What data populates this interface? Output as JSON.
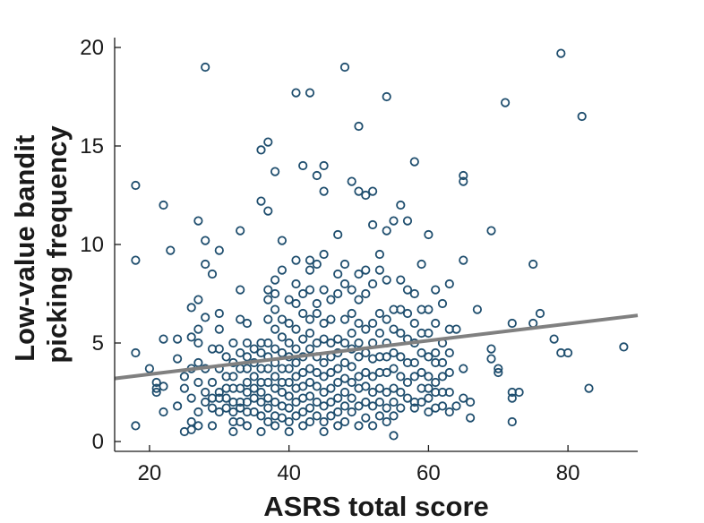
{
  "chart_data": {
    "type": "scatter",
    "xlabel": "ASRS total score",
    "ylabel_lines": [
      "Low-value bandit",
      "picking frequency"
    ],
    "xlim": [
      15,
      90
    ],
    "ylim": [
      -0.5,
      20.5
    ],
    "xticks": [
      20,
      40,
      60,
      80
    ],
    "yticks": [
      0,
      5,
      10,
      15,
      20
    ],
    "grid": false,
    "legend": "none",
    "colors": {
      "marker": "#1f4e6e",
      "fit_line": "#808080"
    },
    "fit_line": {
      "x": [
        15,
        90
      ],
      "y": [
        3.2,
        6.4
      ]
    },
    "points": [
      [
        18,
        13.0
      ],
      [
        18,
        9.2
      ],
      [
        18,
        4.5
      ],
      [
        18,
        0.8
      ],
      [
        20,
        3.7
      ],
      [
        21,
        3.0
      ],
      [
        21,
        2.7
      ],
      [
        21,
        2.5
      ],
      [
        22,
        12.0
      ],
      [
        22,
        5.2
      ],
      [
        22,
        2.8
      ],
      [
        22,
        1.5
      ],
      [
        23,
        9.7
      ],
      [
        24,
        5.2
      ],
      [
        24,
        4.2
      ],
      [
        24,
        1.8
      ],
      [
        25,
        3.3
      ],
      [
        25,
        2.7
      ],
      [
        25,
        0.5
      ],
      [
        26,
        6.8
      ],
      [
        26,
        5.3
      ],
      [
        26,
        3.7
      ],
      [
        26,
        2.2
      ],
      [
        26,
        1.0
      ],
      [
        26,
        0.6
      ],
      [
        27,
        11.2
      ],
      [
        27,
        7.2
      ],
      [
        27,
        5.7
      ],
      [
        27,
        5.0
      ],
      [
        27,
        4.0
      ],
      [
        27,
        3.0
      ],
      [
        27,
        1.5
      ],
      [
        27,
        0.8
      ],
      [
        28,
        19.0
      ],
      [
        28,
        10.2
      ],
      [
        28,
        9.0
      ],
      [
        28,
        6.3
      ],
      [
        28,
        3.7
      ],
      [
        28,
        2.5
      ],
      [
        28,
        2.0
      ],
      [
        29,
        8.5
      ],
      [
        29,
        4.7
      ],
      [
        29,
        3.0
      ],
      [
        29,
        2.2
      ],
      [
        29,
        1.7
      ],
      [
        29,
        0.8
      ],
      [
        30,
        9.7
      ],
      [
        30,
        6.5
      ],
      [
        30,
        5.7
      ],
      [
        30,
        4.7
      ],
      [
        30,
        3.7
      ],
      [
        30,
        2.5
      ],
      [
        30,
        2.2
      ],
      [
        30,
        1.5
      ],
      [
        31,
        4.3
      ],
      [
        31,
        3.3
      ],
      [
        31,
        2.7
      ],
      [
        31,
        2.2
      ],
      [
        31,
        1.7
      ],
      [
        32,
        5.0
      ],
      [
        32,
        4.0
      ],
      [
        32,
        3.3
      ],
      [
        32,
        2.7
      ],
      [
        32,
        2.0
      ],
      [
        32,
        1.5
      ],
      [
        32,
        1.0
      ],
      [
        32,
        0.5
      ],
      [
        33,
        10.7
      ],
      [
        33,
        7.7
      ],
      [
        33,
        6.2
      ],
      [
        33,
        4.5
      ],
      [
        33,
        3.7
      ],
      [
        33,
        2.7
      ],
      [
        33,
        2.0
      ],
      [
        33,
        1.7
      ],
      [
        33,
        1.0
      ],
      [
        34,
        6.0
      ],
      [
        34,
        5.0
      ],
      [
        34,
        4.3
      ],
      [
        34,
        3.7
      ],
      [
        34,
        3.0
      ],
      [
        34,
        2.5
      ],
      [
        34,
        2.0
      ],
      [
        34,
        1.5
      ],
      [
        34,
        0.8
      ],
      [
        35,
        4.7
      ],
      [
        35,
        4.0
      ],
      [
        35,
        3.3
      ],
      [
        35,
        2.7
      ],
      [
        35,
        2.2
      ],
      [
        35,
        1.5
      ],
      [
        36,
        14.8
      ],
      [
        36,
        12.2
      ],
      [
        36,
        5.0
      ],
      [
        36,
        4.5
      ],
      [
        36,
        3.7
      ],
      [
        36,
        3.0
      ],
      [
        36,
        2.5
      ],
      [
        36,
        2.0
      ],
      [
        36,
        1.3
      ],
      [
        36,
        0.5
      ],
      [
        37,
        15.2
      ],
      [
        37,
        11.7
      ],
      [
        37,
        7.7
      ],
      [
        37,
        7.2
      ],
      [
        37,
        6.2
      ],
      [
        37,
        5.0
      ],
      [
        37,
        4.3
      ],
      [
        37,
        3.7
      ],
      [
        37,
        3.0
      ],
      [
        37,
        2.2
      ],
      [
        37,
        1.7
      ],
      [
        37,
        1.0
      ],
      [
        38,
        13.7
      ],
      [
        38,
        8.2
      ],
      [
        38,
        7.5
      ],
      [
        38,
        6.7
      ],
      [
        38,
        5.7
      ],
      [
        38,
        4.7
      ],
      [
        38,
        4.0
      ],
      [
        38,
        3.3
      ],
      [
        38,
        2.7
      ],
      [
        38,
        2.0
      ],
      [
        38,
        1.3
      ],
      [
        38,
        0.8
      ],
      [
        39,
        10.2
      ],
      [
        39,
        8.7
      ],
      [
        39,
        6.2
      ],
      [
        39,
        5.3
      ],
      [
        39,
        4.5
      ],
      [
        39,
        3.7
      ],
      [
        39,
        3.0
      ],
      [
        39,
        2.5
      ],
      [
        39,
        1.8
      ],
      [
        39,
        1.2
      ],
      [
        40,
        7.2
      ],
      [
        40,
        6.0
      ],
      [
        40,
        5.0
      ],
      [
        40,
        4.3
      ],
      [
        40,
        3.7
      ],
      [
        40,
        3.0
      ],
      [
        40,
        2.3
      ],
      [
        40,
        1.7
      ],
      [
        40,
        1.0
      ],
      [
        40,
        0.5
      ],
      [
        41,
        17.7
      ],
      [
        41,
        9.2
      ],
      [
        41,
        8.0
      ],
      [
        41,
        7.0
      ],
      [
        41,
        5.7
      ],
      [
        41,
        4.7
      ],
      [
        41,
        4.0
      ],
      [
        41,
        3.3
      ],
      [
        41,
        2.7
      ],
      [
        41,
        2.0
      ],
      [
        41,
        1.3
      ],
      [
        42,
        14.0
      ],
      [
        42,
        7.5
      ],
      [
        42,
        6.5
      ],
      [
        42,
        5.2
      ],
      [
        42,
        4.3
      ],
      [
        42,
        3.5
      ],
      [
        42,
        2.8
      ],
      [
        42,
        2.2
      ],
      [
        42,
        1.5
      ],
      [
        42,
        0.8
      ],
      [
        43,
        17.7
      ],
      [
        43,
        9.2
      ],
      [
        43,
        8.7
      ],
      [
        43,
        7.7
      ],
      [
        43,
        6.2
      ],
      [
        43,
        5.5
      ],
      [
        43,
        4.7
      ],
      [
        43,
        3.7
      ],
      [
        43,
        3.0
      ],
      [
        43,
        2.3
      ],
      [
        43,
        1.7
      ],
      [
        43,
        1.0
      ],
      [
        44,
        13.5
      ],
      [
        44,
        9.0
      ],
      [
        44,
        7.0
      ],
      [
        44,
        6.5
      ],
      [
        44,
        5.0
      ],
      [
        44,
        4.3
      ],
      [
        44,
        3.5
      ],
      [
        44,
        2.8
      ],
      [
        44,
        2.0
      ],
      [
        44,
        1.3
      ],
      [
        45,
        14.0
      ],
      [
        45,
        12.7
      ],
      [
        45,
        9.5
      ],
      [
        45,
        7.7
      ],
      [
        45,
        6.0
      ],
      [
        45,
        5.2
      ],
      [
        45,
        4.0
      ],
      [
        45,
        3.3
      ],
      [
        45,
        2.5
      ],
      [
        45,
        1.8
      ],
      [
        45,
        1.0
      ],
      [
        45,
        0.5
      ],
      [
        46,
        7.2
      ],
      [
        46,
        6.2
      ],
      [
        46,
        5.0
      ],
      [
        46,
        4.3
      ],
      [
        46,
        3.5
      ],
      [
        46,
        2.7
      ],
      [
        46,
        2.0
      ],
      [
        46,
        1.3
      ],
      [
        47,
        10.5
      ],
      [
        47,
        8.5
      ],
      [
        47,
        7.5
      ],
      [
        47,
        5.2
      ],
      [
        47,
        4.5
      ],
      [
        47,
        3.7
      ],
      [
        47,
        3.0
      ],
      [
        47,
        2.2
      ],
      [
        47,
        1.5
      ],
      [
        47,
        0.8
      ],
      [
        48,
        19.0
      ],
      [
        48,
        9.0
      ],
      [
        48,
        8.0
      ],
      [
        48,
        6.2
      ],
      [
        48,
        5.0
      ],
      [
        48,
        4.0
      ],
      [
        48,
        3.2
      ],
      [
        48,
        2.5
      ],
      [
        48,
        1.8
      ],
      [
        48,
        1.0
      ],
      [
        49,
        13.2
      ],
      [
        49,
        7.7
      ],
      [
        49,
        6.5
      ],
      [
        49,
        5.5
      ],
      [
        49,
        4.7
      ],
      [
        49,
        3.8
      ],
      [
        49,
        3.0
      ],
      [
        49,
        2.2
      ],
      [
        49,
        1.5
      ],
      [
        50,
        16.0
      ],
      [
        50,
        12.7
      ],
      [
        50,
        8.5
      ],
      [
        50,
        7.2
      ],
      [
        50,
        6.0
      ],
      [
        50,
        5.0
      ],
      [
        50,
        4.3
      ],
      [
        50,
        3.3
      ],
      [
        50,
        2.7
      ],
      [
        50,
        1.8
      ],
      [
        50,
        0.8
      ],
      [
        51,
        12.5
      ],
      [
        51,
        8.7
      ],
      [
        51,
        7.5
      ],
      [
        51,
        5.7
      ],
      [
        51,
        4.5
      ],
      [
        51,
        3.5
      ],
      [
        51,
        2.8
      ],
      [
        51,
        2.0
      ],
      [
        51,
        1.2
      ],
      [
        52,
        12.7
      ],
      [
        52,
        11.0
      ],
      [
        52,
        8.0
      ],
      [
        52,
        6.0
      ],
      [
        52,
        5.0
      ],
      [
        52,
        4.2
      ],
      [
        52,
        3.3
      ],
      [
        52,
        2.5
      ],
      [
        52,
        1.8
      ],
      [
        52,
        0.8
      ],
      [
        53,
        9.5
      ],
      [
        53,
        8.7
      ],
      [
        53,
        6.5
      ],
      [
        53,
        5.5
      ],
      [
        53,
        4.3
      ],
      [
        53,
        3.5
      ],
      [
        53,
        2.7
      ],
      [
        53,
        2.0
      ],
      [
        53,
        1.3
      ],
      [
        54,
        17.5
      ],
      [
        54,
        10.7
      ],
      [
        54,
        8.2
      ],
      [
        54,
        6.2
      ],
      [
        54,
        5.0
      ],
      [
        54,
        4.3
      ],
      [
        54,
        3.5
      ],
      [
        54,
        2.5
      ],
      [
        54,
        1.7
      ],
      [
        54,
        1.0
      ],
      [
        55,
        11.2
      ],
      [
        55,
        6.7
      ],
      [
        55,
        5.7
      ],
      [
        55,
        4.5
      ],
      [
        55,
        3.7
      ],
      [
        55,
        2.7
      ],
      [
        55,
        2.0
      ],
      [
        55,
        1.3
      ],
      [
        55,
        0.3
      ],
      [
        56,
        12.0
      ],
      [
        56,
        8.2
      ],
      [
        56,
        6.7
      ],
      [
        56,
        5.5
      ],
      [
        56,
        4.3
      ],
      [
        56,
        3.3
      ],
      [
        56,
        2.5
      ],
      [
        56,
        1.7
      ],
      [
        57,
        11.2
      ],
      [
        57,
        7.7
      ],
      [
        57,
        6.5
      ],
      [
        57,
        5.2
      ],
      [
        57,
        4.0
      ],
      [
        57,
        3.0
      ],
      [
        57,
        2.2
      ],
      [
        58,
        14.2
      ],
      [
        58,
        7.5
      ],
      [
        58,
        6.0
      ],
      [
        58,
        5.0
      ],
      [
        58,
        4.0
      ],
      [
        58,
        3.3
      ],
      [
        58,
        2.0
      ],
      [
        58,
        1.7
      ],
      [
        59,
        9.0
      ],
      [
        59,
        6.7
      ],
      [
        59,
        5.5
      ],
      [
        59,
        4.5
      ],
      [
        59,
        3.5
      ],
      [
        59,
        2.7
      ],
      [
        59,
        2.0
      ],
      [
        60,
        10.5
      ],
      [
        60,
        6.7
      ],
      [
        60,
        5.5
      ],
      [
        60,
        4.3
      ],
      [
        60,
        3.3
      ],
      [
        60,
        2.7
      ],
      [
        60,
        2.2
      ],
      [
        60,
        1.5
      ],
      [
        61,
        7.7
      ],
      [
        61,
        6.0
      ],
      [
        61,
        4.5
      ],
      [
        61,
        4.0
      ],
      [
        61,
        3.0
      ],
      [
        61,
        2.5
      ],
      [
        61,
        1.7
      ],
      [
        62,
        7.0
      ],
      [
        62,
        5.0
      ],
      [
        62,
        4.0
      ],
      [
        62,
        3.3
      ],
      [
        62,
        2.5
      ],
      [
        62,
        1.8
      ],
      [
        63,
        8.0
      ],
      [
        63,
        5.7
      ],
      [
        63,
        4.5
      ],
      [
        63,
        3.5
      ],
      [
        63,
        2.5
      ],
      [
        63,
        1.5
      ],
      [
        64,
        5.7
      ],
      [
        64,
        1.8
      ],
      [
        65,
        13.5
      ],
      [
        65,
        13.2
      ],
      [
        65,
        9.2
      ],
      [
        65,
        3.7
      ],
      [
        65,
        2.2
      ],
      [
        66,
        2.0
      ],
      [
        66,
        1.2
      ],
      [
        67,
        6.7
      ],
      [
        69,
        10.7
      ],
      [
        69,
        4.7
      ],
      [
        69,
        4.2
      ],
      [
        70,
        3.7
      ],
      [
        70,
        3.5
      ],
      [
        71,
        17.2
      ],
      [
        72,
        6.0
      ],
      [
        72,
        2.5
      ],
      [
        72,
        2.2
      ],
      [
        72,
        1.0
      ],
      [
        73,
        2.5
      ],
      [
        75,
        9.0
      ],
      [
        75,
        6.0
      ],
      [
        76,
        6.5
      ],
      [
        78,
        5.2
      ],
      [
        79,
        19.7
      ],
      [
        79,
        4.5
      ],
      [
        80,
        4.5
      ],
      [
        82,
        16.5
      ],
      [
        83,
        2.7
      ],
      [
        88,
        4.8
      ]
    ]
  }
}
